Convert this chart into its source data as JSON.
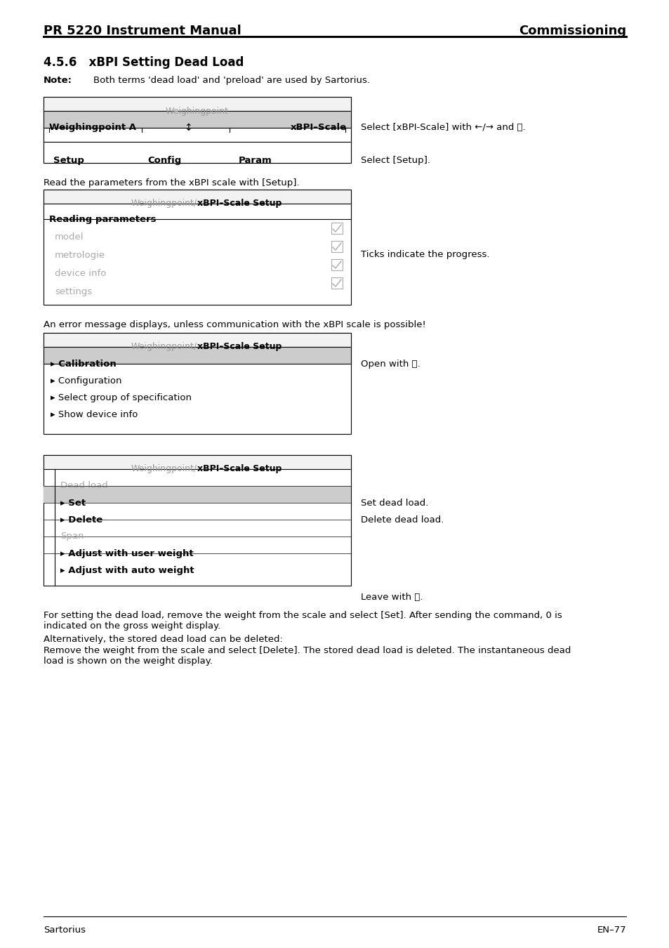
{
  "page_title_left": "PR 5220 Instrument Manual",
  "page_title_right": "Commissioning",
  "section_title": "4.5.6   xBPI Setting Dead Load",
  "note_label": "Note:",
  "note_text": "Both terms 'dead load' and 'preload' are used by Sartorius.",
  "box1_header": "Weighingpoint",
  "box1_row1_label": "Weighingpoint A",
  "box1_row1_right": "xBPI–Scale",
  "box1_instruction1": "Select [xBPI-Scale] with ←/→ and ⓞ.",
  "box1_instruction2": "Select [Setup].",
  "box1_tabs": [
    "Setup",
    "Config",
    "Param"
  ],
  "read_params_text": "Read the parameters from the xBPI scale with [Setup].",
  "box2_header_gray": "Weighingpoint/",
  "box2_header_bold": "xBPI–Scale Setup",
  "box2_subheader": "Reading parameters",
  "box2_items": [
    "model",
    "metrologie",
    "device info",
    "settings"
  ],
  "box2_instruction": "Ticks indicate the progress.",
  "para_error": "An error message displays, unless communication with the xBPI scale is possible!",
  "box3_header_gray": "Weighingpoint/",
  "box3_header_bold": "xBPI–Scale Setup",
  "box3_item_selected": "▸ Calibration",
  "box3_items": [
    "▸ Configuration",
    "▸ Select group of specification",
    "▸ Show device info"
  ],
  "box3_instruction": "Open with ⓞ.",
  "box4_header_gray": "Weighingpoint/",
  "box4_header_bold": "xBPI–Scale Setup",
  "box4_section1": "Dead load",
  "box4_set": "▸ Set",
  "box4_delete": "▸ Delete",
  "box4_section2": "Span",
  "box4_adjust1": "▸ Adjust with user weight",
  "box4_adjust2": "▸ Adjust with auto weight",
  "box4_instr_set": "Set dead load.",
  "box4_instr_delete": "Delete dead load.",
  "box4_instr_leave": "Leave with ⓘ.",
  "para1_line1": "For setting the dead load, remove the weight from the scale and select [Set]. After sending the command, 0 is",
  "para1_line2": "indicated on the gross weight display.",
  "para2": "Alternatively, the stored dead load can be deleted:",
  "para3_line1": "Remove the weight from the scale and select [Delete]. The stored dead load is deleted. The instantaneous dead",
  "para3_line2": "load is shown on the weight display.",
  "footer_left": "Sartorius",
  "footer_right": "EN–77"
}
